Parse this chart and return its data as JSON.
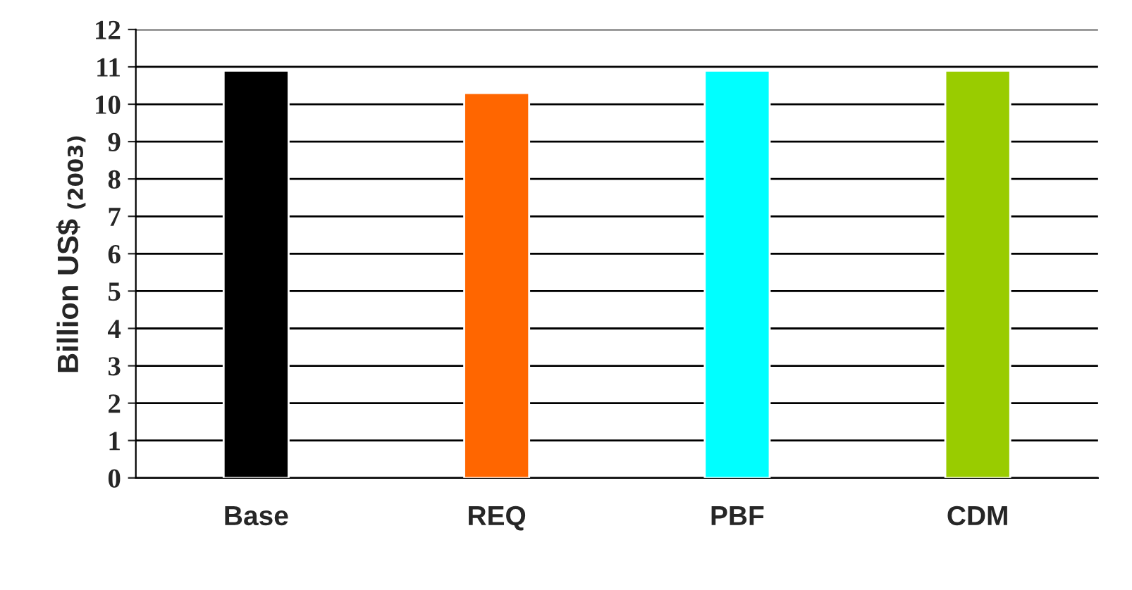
{
  "chart_data": {
    "type": "bar",
    "ylabel": "Billion US$ $_{(2003)}$",
    "categories": [
      "Base",
      "REQ",
      "PBF",
      "CDM"
    ],
    "values": [
      10.9,
      10.3,
      10.9,
      10.9
    ],
    "colors": [
      "#000000",
      "#ff6600",
      "#00ffff",
      "#99cc00"
    ],
    "ylim": [
      0,
      12
    ],
    "yticks": [
      0,
      1,
      2,
      3,
      4,
      5,
      6,
      7,
      8,
      9,
      10,
      11,
      12
    ],
    "grid": "y"
  }
}
